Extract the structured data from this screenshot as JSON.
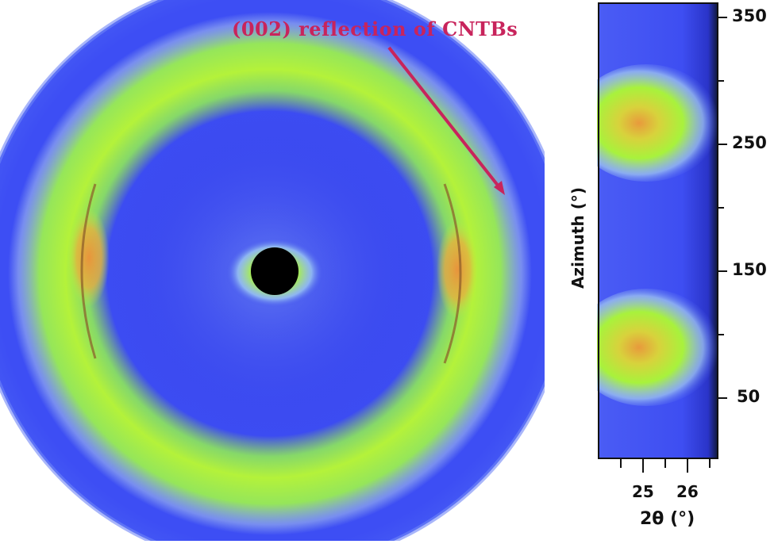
{
  "annotation": "(002) reflection of CNTBs",
  "azimuth_panel": {
    "y_title": "Azimuth (°)",
    "x_title": "2θ (°)",
    "y_ticks": [
      "350",
      "250",
      "150",
      "50"
    ],
    "x_ticks": [
      "25",
      "26"
    ]
  },
  "colors": {
    "background": "#3c4cf2",
    "ring": "#a8f23c",
    "hotspot": "#e8a23c",
    "annotation": "#c8245c"
  }
}
